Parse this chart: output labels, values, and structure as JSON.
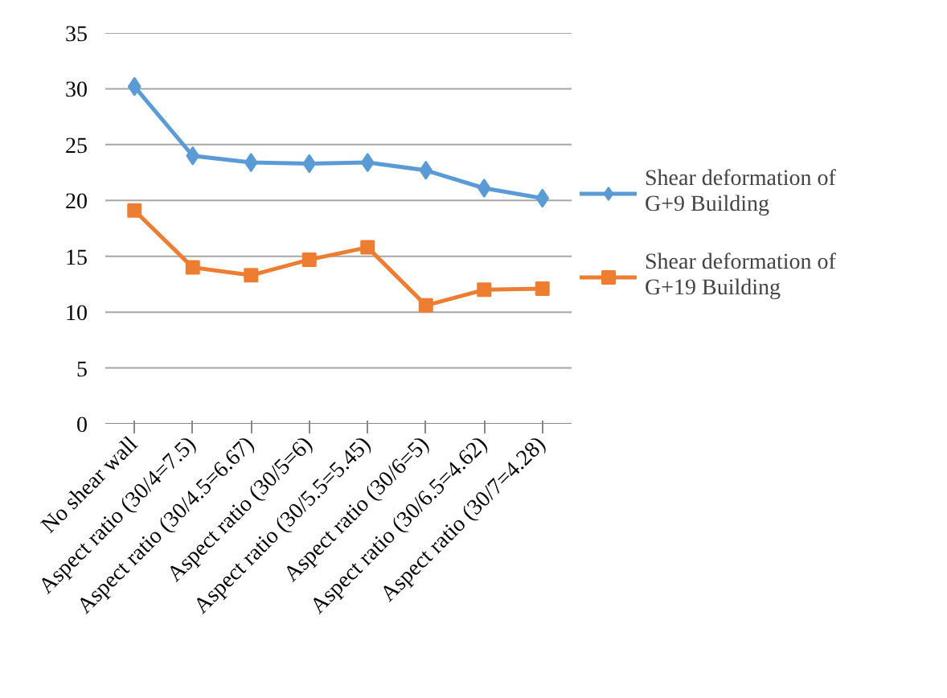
{
  "chart_data": {
    "type": "line",
    "categories": [
      "No shear wall",
      "Aspect ratio (30/4=7.5)",
      "Aspect ratio (30/4.5=6.67)",
      "Aspect ratio (30/5=6)",
      "Aspect ratio (30/5.5=5.45)",
      "Aspect ratio (30/6=5)",
      "Aspect ratio (30/6.5=4.62)",
      "Aspect ratio (30/7=4.28)"
    ],
    "series": [
      {
        "name": "Shear deformation of G+9 Building",
        "color": "#5b9bd5",
        "marker": "diamond",
        "values": [
          30.2,
          24.0,
          23.4,
          23.3,
          23.4,
          22.7,
          21.1,
          20.2
        ]
      },
      {
        "name": "Shear deformation of G+19 Building",
        "color": "#ed7d31",
        "marker": "square",
        "values": [
          19.1,
          14.0,
          13.3,
          14.7,
          15.8,
          10.6,
          12.0,
          12.1
        ]
      }
    ],
    "ylim": [
      0,
      35
    ],
    "yticks": [
      0,
      5,
      10,
      15,
      20,
      25,
      30,
      35
    ],
    "grid": "y",
    "legend": "right",
    "line_style": "solid"
  }
}
